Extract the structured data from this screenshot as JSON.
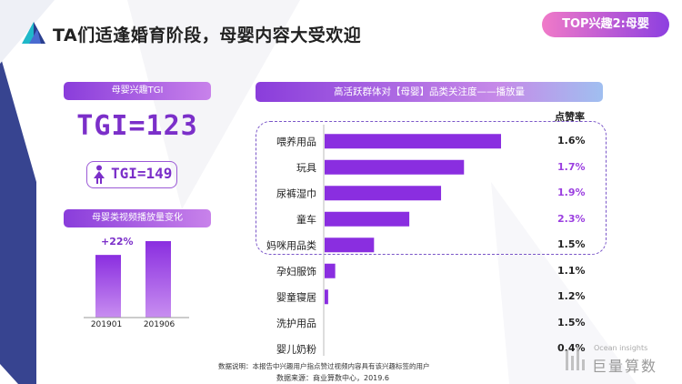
{
  "header": {
    "title": "TA们适逢婚育阶段，母婴内容大受欢迎",
    "badge": "TOP兴趣2:母婴"
  },
  "tgi_panel": {
    "pill_label": "母婴兴趣TGI",
    "overall_tgi": "TGI=123",
    "female_tgi": "TGI=149",
    "female_icon": "female-icon"
  },
  "playback_panel": {
    "pill_label": "母婴类视频播放量变化",
    "growth": "+22%"
  },
  "right_panel": {
    "title": "高活跃群体对【母婴】品类关注度——播放量",
    "rate_header": "点赞率",
    "rates": [
      "1.6%",
      "1.7%",
      "1.9%",
      "2.3%",
      "1.5%",
      "1.1%",
      "1.2%",
      "1.5%",
      "0.4%"
    ]
  },
  "colors": {
    "accent_purple": "#7b2fc9",
    "bar_purple": "#8a2ee0",
    "rate_highlight": "#9b3fe0",
    "badge_gradient": [
      "#f07ac8",
      "#8d3fe0"
    ]
  },
  "chart_data": [
    {
      "type": "bar",
      "title": "",
      "categories": [
        "201901",
        "201906"
      ],
      "values": [
        100,
        122
      ],
      "annotation": "+22%",
      "xlabel": "",
      "ylabel": ""
    },
    {
      "type": "bar",
      "orientation": "horizontal",
      "title": "",
      "categories": [
        "喂养用品",
        "玩具",
        "尿裤湿巾",
        "童车",
        "妈咪用品类",
        "孕妇服饰",
        "婴童寝居",
        "洗护用品",
        "婴儿奶粉"
      ],
      "values": [
        100,
        79,
        66,
        48,
        28,
        6,
        2,
        0,
        0
      ],
      "like_rate": [
        "1.6%",
        "1.7%",
        "1.9%",
        "2.3%",
        "1.5%",
        "1.1%",
        "1.2%",
        "1.5%",
        "0.4%"
      ],
      "highlighted_categories": [
        "喂养用品",
        "玩具",
        "尿裤湿巾",
        "童车",
        "妈咪用品类"
      ],
      "xlabel": "",
      "ylabel": "",
      "grid": false
    }
  ],
  "footer": {
    "note": "数据说明：本报告中兴趣用户指点赞过视频内容具有该兴趣标签的用户",
    "source": "数据来源：商业算数中心，2019.6",
    "watermark_en": "Ocean insights",
    "watermark_cn": "巨量算数"
  }
}
